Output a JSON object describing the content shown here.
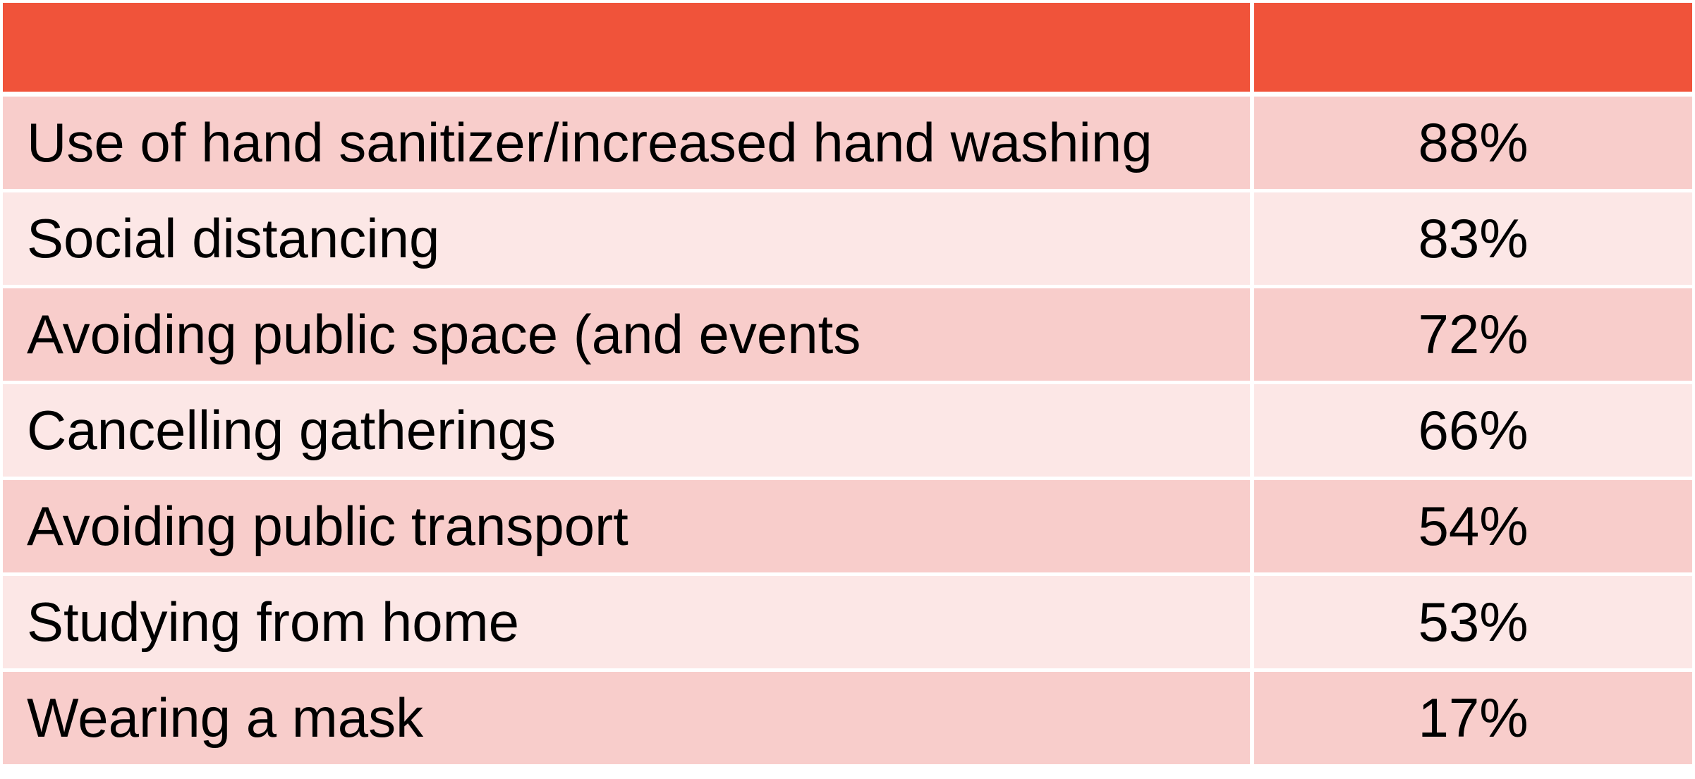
{
  "table": {
    "header": [
      "",
      ""
    ],
    "rows": [
      {
        "label": "Use of hand sanitizer/increased hand washing",
        "value": "88%"
      },
      {
        "label": "Social distancing",
        "value": "83%"
      },
      {
        "label": "Avoiding public space (and events",
        "value": "72%"
      },
      {
        "label": "Cancelling gatherings",
        "value": "66%"
      },
      {
        "label": "Avoiding public transport",
        "value": "54%"
      },
      {
        "label": "Studying from home",
        "value": "53%"
      },
      {
        "label": "Wearing a mask",
        "value": "17%"
      }
    ]
  },
  "colors": {
    "header": "#f0533a",
    "row_odd": "#f8cdcb",
    "row_even": "#fce7e6"
  }
}
